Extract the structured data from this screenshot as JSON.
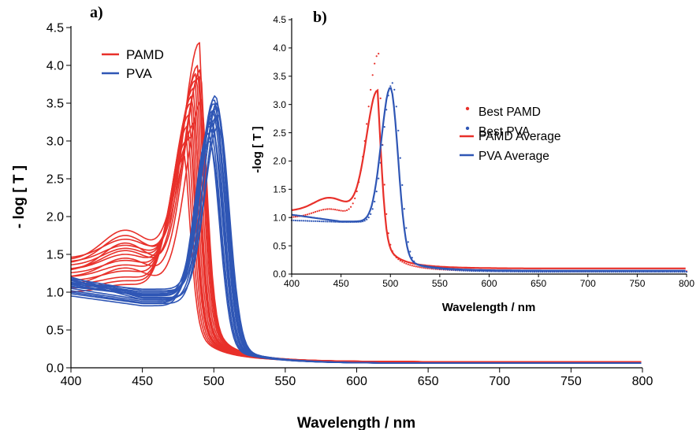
{
  "chart_data": [
    {
      "panel": "a)",
      "type": "line",
      "xlabel": "Wavelength / nm",
      "ylabel": "- log [ T ]",
      "xlim": [
        400,
        800
      ],
      "ylim": [
        0,
        4.5
      ],
      "xticks": [
        "400",
        "450",
        "500",
        "550",
        "600",
        "650",
        "700",
        "750",
        "800"
      ],
      "yticks": [
        "0.0",
        "0.5",
        "1.0",
        "1.5",
        "2.0",
        "2.5",
        "3.0",
        "3.5",
        "4.0",
        "4.5"
      ],
      "legend": {
        "position": "top-left",
        "entries": [
          "PAMD",
          "PVA"
        ]
      },
      "colors": {
        "PAMD": "#e8302a",
        "PVA": "#2f56b5"
      },
      "series": [
        {
          "name": "PAMD",
          "type": "family",
          "count": 16,
          "peak_x": [
            480,
            481,
            482,
            483,
            484,
            485,
            486,
            487,
            488,
            489,
            490,
            491,
            492,
            487,
            484,
            490
          ],
          "peak_y": [
            2.8,
            3.0,
            3.2,
            3.35,
            3.5,
            3.6,
            3.7,
            3.8,
            3.9,
            4.0,
            4.3,
            3.95,
            3.55,
            3.25,
            3.05,
            3.85
          ],
          "start_y": [
            1.0,
            1.05,
            1.1,
            1.15,
            1.2,
            1.25,
            1.3,
            1.35,
            1.4,
            1.45,
            1.3,
            1.2,
            1.1,
            1.38,
            1.42,
            1.28
          ],
          "shoulder_y": [
            1.1,
            1.15,
            1.2,
            1.28,
            1.36,
            1.42,
            1.5,
            1.58,
            1.62,
            1.7,
            1.55,
            1.45,
            1.32,
            1.75,
            1.82,
            1.65
          ],
          "tail_y": 0.08
        },
        {
          "name": "PVA",
          "type": "family",
          "count": 16,
          "peak_x": [
            496,
            497,
            498,
            499,
            500,
            501,
            502,
            503,
            498,
            499,
            500,
            501,
            502,
            497,
            500,
            503
          ],
          "peak_y": [
            3.1,
            3.2,
            3.3,
            3.4,
            3.5,
            3.6,
            3.45,
            3.35,
            3.25,
            3.15,
            3.55,
            3.3,
            3.5,
            3.0,
            3.4,
            3.2
          ],
          "start_y": [
            0.95,
            1.0,
            1.05,
            1.1,
            1.12,
            1.15,
            1.18,
            1.2,
            1.02,
            1.07,
            1.13,
            1.16,
            0.98,
            1.08,
            1.11,
            1.17
          ],
          "dip_y": [
            0.82,
            0.86,
            0.9,
            0.95,
            0.98,
            1.0,
            1.02,
            0.92,
            0.88,
            0.96,
            1.04,
            0.9,
            0.85,
            0.97,
            1.0,
            0.93
          ],
          "tail_y": 0.06
        }
      ]
    },
    {
      "panel": "b)",
      "type": "line",
      "xlabel": "Wavelength / nm",
      "ylabel": "-log [ T ]",
      "xlim": [
        400,
        800
      ],
      "ylim": [
        0,
        4.5
      ],
      "xticks": [
        "400",
        "450",
        "500",
        "550",
        "600",
        "650",
        "700",
        "750",
        "800"
      ],
      "yticks": [
        "0.0",
        "0.5",
        "1.0",
        "1.5",
        "2.0",
        "2.5",
        "3.0",
        "3.5",
        "4.0",
        "4.5"
      ],
      "legend": {
        "position": "right",
        "entries": [
          "Best PAMD",
          "Best PVA",
          "PAMD Average",
          "PVA Average"
        ]
      },
      "colors": {
        "Best PAMD": "#e8302a",
        "Best PVA": "#2f56b5",
        "PAMD Average": "#e8302a",
        "PVA Average": "#2f56b5"
      },
      "series": [
        {
          "name": "Best PAMD",
          "style": "dotted",
          "peak_x": 488,
          "peak_y": 3.9,
          "start_y": 1.0,
          "shoulder_y": 1.15,
          "tail_y": 0.05
        },
        {
          "name": "Best PVA",
          "style": "dotted",
          "peak_x": 502,
          "peak_y": 3.38,
          "start_y": 0.95,
          "dip_y": 0.92,
          "tail_y": 0.04
        },
        {
          "name": "PAMD Average",
          "style": "solid",
          "peak_x": 487,
          "peak_y": 3.25,
          "start_y": 1.12,
          "shoulder_y": 1.35,
          "tail_y": 0.1
        },
        {
          "name": "PVA Average",
          "style": "solid",
          "peak_x": 500,
          "peak_y": 3.3,
          "start_y": 1.05,
          "dip_y": 0.93,
          "tail_y": 0.06
        }
      ]
    }
  ]
}
